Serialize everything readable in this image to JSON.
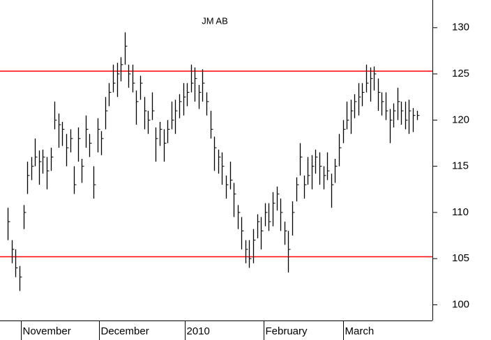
{
  "chart_data": {
    "type": "ohlc",
    "title": "JM AB",
    "color": "#000000",
    "high": [
      110.5,
      107,
      106,
      104.2,
      110.8,
      115.5,
      116,
      118,
      116.7,
      116.8,
      116,
      117,
      122,
      120.7,
      119.8,
      118.5,
      119,
      115,
      119.2,
      115.8,
      120.5,
      118.5,
      115,
      120.2,
      118.8,
      122.5,
      124,
      126,
      126.2,
      126.8,
      129.5,
      126,
      126,
      123.2,
      124.8,
      122.5,
      121,
      123,
      119.2,
      119.8,
      119,
      120,
      122,
      122.2,
      122.8,
      124,
      124,
      126,
      125.7,
      123.8,
      125.5,
      123,
      121,
      118.2,
      116.8,
      116.5,
      114,
      115.5,
      113.2,
      110.8,
      109.5,
      107,
      107,
      108.2,
      109.8,
      109.5,
      111,
      111,
      112.2,
      112.8,
      111.5,
      109,
      108,
      111.2,
      113.8,
      117.5,
      114,
      116,
      116.2,
      116.8,
      116.5,
      115,
      116.5,
      114.2,
      115.8,
      118.5,
      120,
      122,
      122.2,
      122.8,
      124,
      124,
      126,
      125.7,
      125.8,
      124.5,
      123,
      123,
      121.2,
      121.8,
      123.5,
      122,
      122,
      122.2,
      121.3,
      121
    ],
    "low": [
      107,
      104.5,
      103,
      101.5,
      108.2,
      112,
      113.5,
      115,
      113,
      114.2,
      112.5,
      114.5,
      119,
      117,
      117.2,
      115,
      116.5,
      112,
      115.5,
      113.2,
      117,
      116,
      111.5,
      116.5,
      116.2,
      119,
      121.5,
      123,
      122.5,
      124.2,
      126,
      123.5,
      123,
      119.5,
      122.2,
      119,
      118.5,
      120,
      115.5,
      117.2,
      115.5,
      117.5,
      119,
      118.5,
      120.2,
      120.5,
      121.5,
      123,
      122,
      121.2,
      122,
      120.5,
      118,
      114.5,
      114.2,
      113,
      111.5,
      112.5,
      109.5,
      108.2,
      106,
      104.5,
      104,
      104.5,
      107.2,
      106,
      108.5,
      108,
      108.5,
      110.2,
      108,
      106.5,
      103.5,
      107.5,
      111.2,
      114,
      111.5,
      113,
      112.5,
      114.2,
      113,
      112.5,
      113.5,
      110.5,
      113.2,
      115,
      117.5,
      119,
      118.5,
      120.2,
      120.5,
      121.5,
      123,
      122,
      123.2,
      121,
      120.5,
      120,
      117.5,
      119.2,
      120,
      119.5,
      119,
      118.5,
      118.7,
      120
    ],
    "close": [
      109,
      106,
      104,
      103,
      110,
      114,
      115,
      116,
      115.5,
      116,
      114.5,
      116,
      120,
      119.5,
      119,
      117,
      118,
      113,
      118,
      115,
      119,
      117.5,
      113,
      119,
      118,
      121,
      123,
      124,
      125,
      126,
      128,
      125,
      124,
      122,
      124,
      121,
      120,
      121,
      118,
      119,
      117.5,
      119,
      120,
      121,
      122,
      122.5,
      123,
      124,
      124.5,
      123,
      124,
      122,
      119,
      117,
      116,
      115,
      113,
      113.5,
      112,
      110,
      108,
      106,
      105,
      107,
      109,
      108,
      110,
      109,
      111,
      112,
      110,
      108,
      106,
      110,
      113,
      116,
      113,
      114,
      115,
      116,
      115,
      114,
      114.5,
      113,
      115,
      117,
      119,
      120,
      121,
      122,
      122.5,
      123,
      124,
      124.5,
      125,
      123,
      122,
      121,
      120,
      121,
      122,
      121,
      120,
      121,
      120.5,
      120.5
    ],
    "xlim": [
      -2,
      109
    ],
    "xticks": [
      {
        "value": 3.4,
        "label": "November"
      },
      {
        "value": 23.4,
        "label": "December"
      },
      {
        "value": 45.4,
        "label": "2010"
      },
      {
        "value": 65.7,
        "label": "February"
      },
      {
        "value": 86.1,
        "label": "March"
      }
    ],
    "ylim": [
      98.3,
      133
    ],
    "yticks": [
      100,
      105,
      110,
      115,
      120,
      125,
      130
    ],
    "hlines": {
      "values": [
        125.3,
        105.2
      ],
      "color": "#ff0000"
    }
  }
}
